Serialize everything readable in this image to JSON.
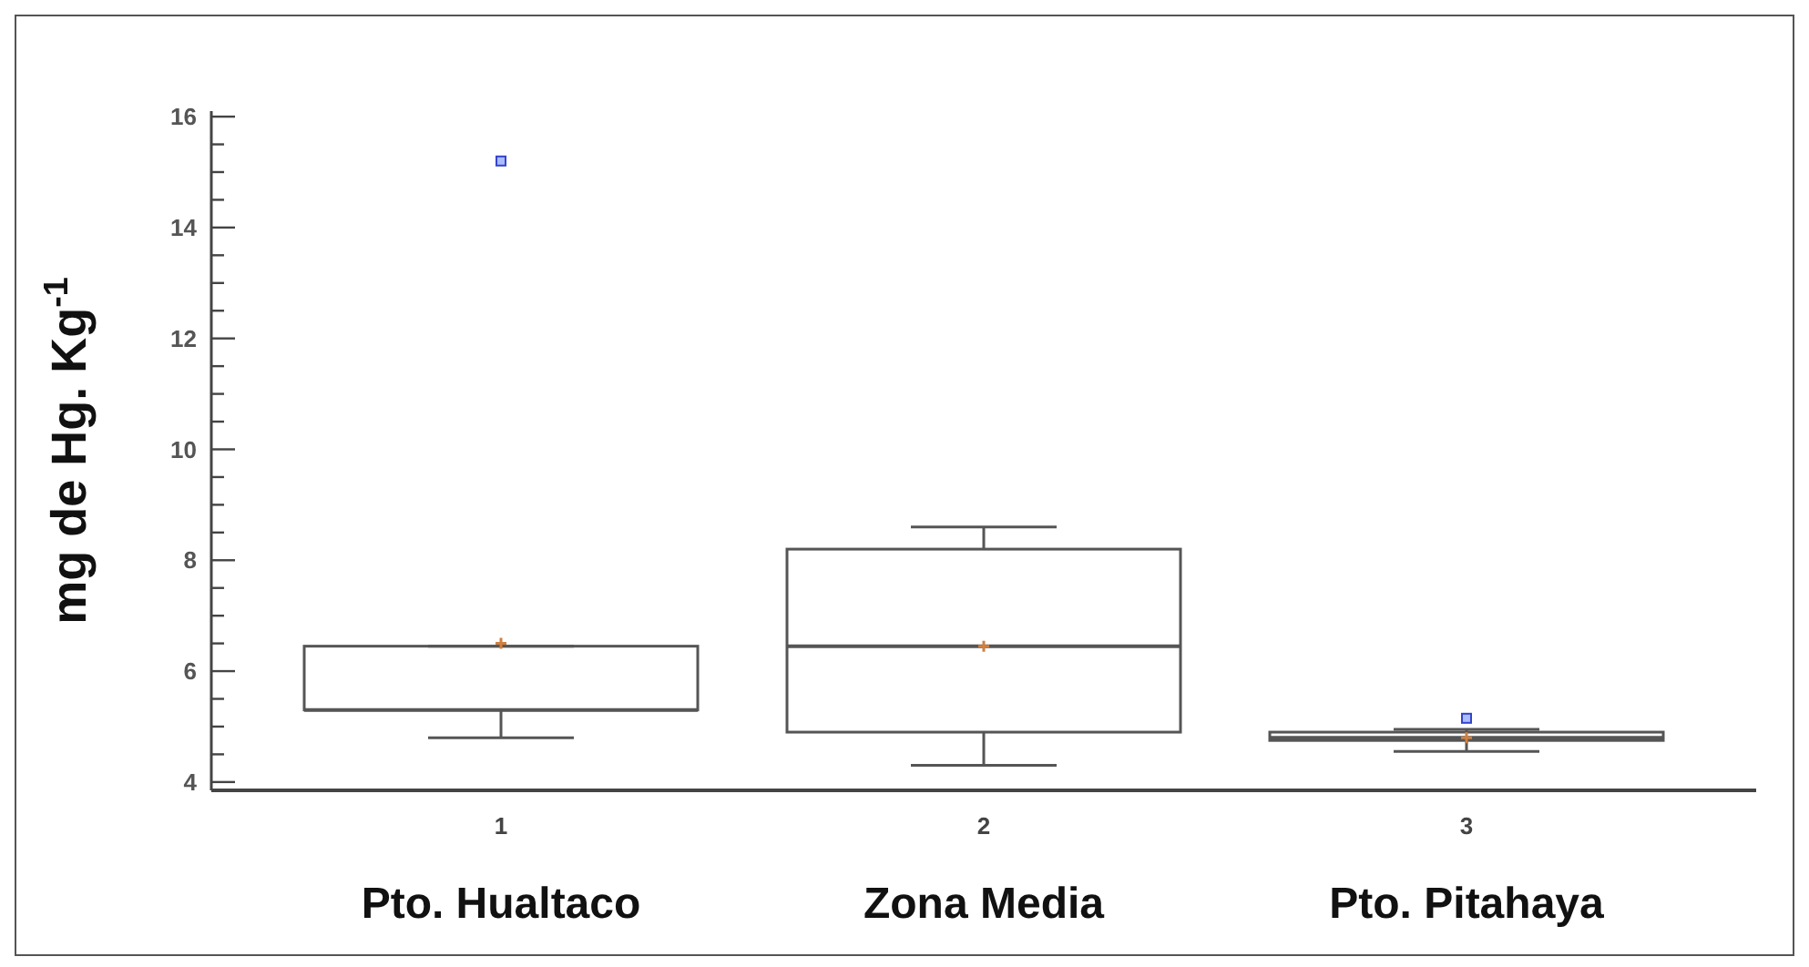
{
  "chart_data": {
    "type": "box",
    "ylabel": "mg de Hg. Kg$^{-1}$",
    "categories": [
      "1",
      "2",
      "3"
    ],
    "annotations": [
      "Pto. Hualtaco",
      "Zona Media",
      "Pto. Pitahaya"
    ],
    "color": "#555555",
    "boxes": [
      {
        "low": 4.8,
        "q1": 5.3,
        "median": 5.3,
        "q3": 6.45,
        "high": 6.45,
        "mean": 6.5,
        "outliers": [
          15.2
        ]
      },
      {
        "low": 4.3,
        "q1": 4.9,
        "median": 6.45,
        "q3": 8.2,
        "high": 8.6,
        "mean": 6.45
      },
      {
        "low": 4.55,
        "q1": 4.75,
        "median": 4.8,
        "q3": 4.9,
        "high": 4.95,
        "mean": 4.8,
        "outliers": [
          5.15
        ]
      }
    ],
    "ylim": [
      3.85,
      16.1
    ],
    "yticks": [
      4,
      {
        "value": 4.5,
        "label": null
      },
      {
        "value": 5,
        "label": null
      },
      {
        "value": 5.5,
        "label": null
      },
      6,
      {
        "value": 6.5,
        "label": null
      },
      {
        "value": 7,
        "label": null
      },
      {
        "value": 7.5,
        "label": null
      },
      8,
      {
        "value": 8.5,
        "label": null
      },
      {
        "value": 9,
        "label": null
      },
      {
        "value": 9.5,
        "label": null
      },
      10,
      {
        "value": 10.5,
        "label": null
      },
      {
        "value": 11,
        "label": null
      },
      {
        "value": 11.5,
        "label": null
      },
      12,
      {
        "value": 12.5,
        "label": null
      },
      {
        "value": 13,
        "label": null
      },
      {
        "value": 13.5,
        "label": null
      },
      14,
      {
        "value": 14.5,
        "label": null
      },
      {
        "value": 15,
        "label": null
      },
      {
        "value": 15.5,
        "label": null
      },
      16
    ],
    "grid": false,
    "legend": false
  }
}
